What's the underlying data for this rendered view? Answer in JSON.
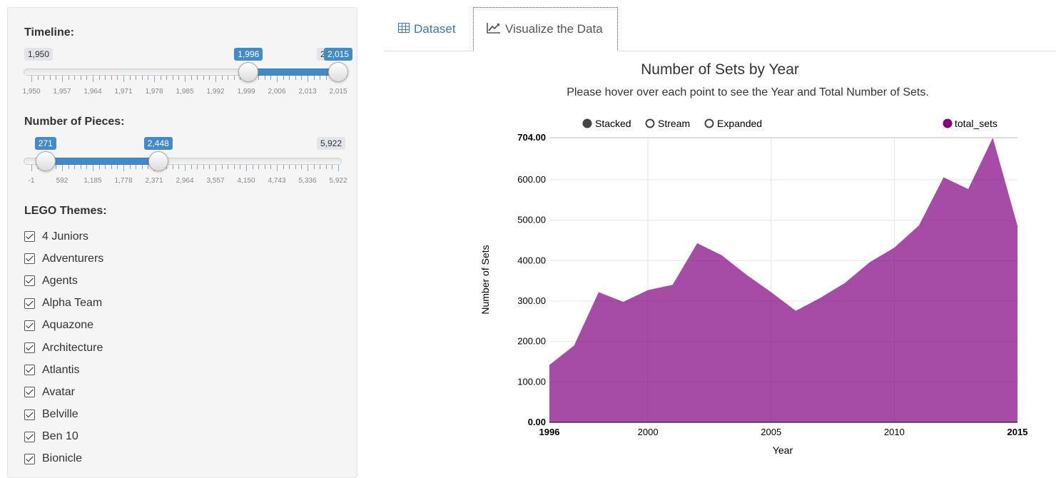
{
  "sidebar": {
    "timeline": {
      "label": "Timeline:",
      "min_label": "1,950",
      "max_label": "2,015",
      "from_label": "1,996",
      "to_label": "2,015",
      "from_value": 1996,
      "to_value": 2015,
      "min": 1950,
      "max": 2015,
      "tick_labels": [
        "1,950",
        "1,957",
        "1,964",
        "1,971",
        "1,978",
        "1,985",
        "1,992",
        "1,999",
        "2,006",
        "2,013",
        "2,015"
      ]
    },
    "pieces": {
      "label": "Number of Pieces:",
      "min_label": "-1",
      "max_label": "5,922",
      "from_label": "271",
      "to_label": "2,448",
      "from_value": 271,
      "to_value": 2448,
      "min": -1,
      "max": 5922,
      "tick_labels": [
        "-1",
        "592",
        "1,185",
        "1,778",
        "2,371",
        "2,964",
        "3,557",
        "4,150",
        "4,743",
        "5,336",
        "5,922"
      ]
    },
    "themes": {
      "label": "LEGO Themes:",
      "items": [
        "4 Juniors",
        "Adventurers",
        "Agents",
        "Alpha Team",
        "Aquazone",
        "Architecture",
        "Atlantis",
        "Avatar",
        "Belville",
        "Ben 10",
        "Bionicle"
      ]
    }
  },
  "tabs": {
    "dataset": "Dataset",
    "visualize": "Visualize the Data"
  },
  "chart": {
    "title": "Number of Sets by Year",
    "subtitle": "Please hover over each point to see the Year and Total Number of Sets."
  },
  "chart_data": {
    "type": "area",
    "controls": [
      "Stacked",
      "Stream",
      "Expanded"
    ],
    "selected_control": "Stacked",
    "legend": [
      "total_sets"
    ],
    "legend_position": "top-right",
    "xlabel": "Year",
    "ylabel": "Number of Sets",
    "x_ticks": [
      "1996",
      "2000",
      "2005",
      "2010",
      "2015"
    ],
    "y_ticks": [
      "0.00",
      "100.00",
      "200.00",
      "300.00",
      "400.00",
      "500.00",
      "600.00",
      "704.00"
    ],
    "xlim": [
      1996,
      2015
    ],
    "ylim": [
      0,
      704
    ],
    "grid": true,
    "color": "#800080",
    "series": [
      {
        "name": "total_sets",
        "x": [
          1996,
          1997,
          1998,
          1999,
          2000,
          2001,
          2002,
          2003,
          2004,
          2005,
          2006,
          2007,
          2008,
          2009,
          2010,
          2011,
          2012,
          2013,
          2014,
          2015
        ],
        "values": [
          142,
          190,
          322,
          298,
          327,
          340,
          443,
          413,
          365,
          322,
          276,
          308,
          345,
          396,
          432,
          487,
          606,
          577,
          704,
          486
        ]
      }
    ]
  }
}
